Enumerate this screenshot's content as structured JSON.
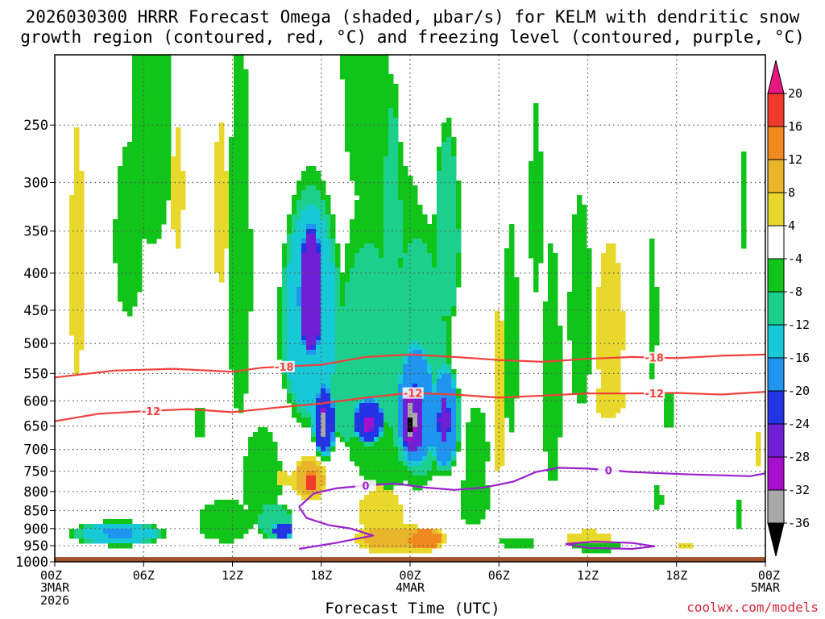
{
  "title_line1": "2026030300 HRRR Forecast Omega (shaded, μbar/s) for KELM with dendritic snow",
  "title_line2": "growth region (contoured, red, °C) and freezing level (contoured, purple, °C)",
  "credit": "coolwx.com/models",
  "chart_data": {
    "type": "heatmap",
    "title": "2026030300 HRRR Forecast Omega (shaded, μbar/s) for KELM",
    "xlabel": "Forecast Time (UTC)",
    "ylabel": "",
    "x_range_hours": [
      0,
      48
    ],
    "x_ticks": [
      {
        "hour": 0,
        "label": "00Z",
        "sub1": "3MAR",
        "sub2": "2026"
      },
      {
        "hour": 6,
        "label": "06Z",
        "sub1": "",
        "sub2": ""
      },
      {
        "hour": 12,
        "label": "12Z",
        "sub1": "",
        "sub2": ""
      },
      {
        "hour": 18,
        "label": "18Z",
        "sub1": "",
        "sub2": ""
      },
      {
        "hour": 24,
        "label": "00Z",
        "sub1": "4MAR",
        "sub2": ""
      },
      {
        "hour": 30,
        "label": "06Z",
        "sub1": "",
        "sub2": ""
      },
      {
        "hour": 36,
        "label": "12Z",
        "sub1": "",
        "sub2": ""
      },
      {
        "hour": 42,
        "label": "18Z",
        "sub1": "",
        "sub2": ""
      },
      {
        "hour": 48,
        "label": "00Z",
        "sub1": "5MAR",
        "sub2": ""
      }
    ],
    "y_axis_pressure_hpa": [
      250,
      300,
      350,
      400,
      450,
      500,
      550,
      600,
      650,
      700,
      750,
      800,
      850,
      900,
      950,
      1000
    ],
    "y_range_hpa": [
      200,
      1000
    ],
    "ground_level_hpa": 985,
    "colorbar_labels": [
      "20",
      "16",
      "12",
      "8",
      "4",
      "-4",
      "-8",
      "-12",
      "-16",
      "-20",
      "-24",
      "-28",
      "-32",
      "-36"
    ],
    "colorbar": [
      {
        "lo": 20,
        "hi": 24,
        "color": "#e8177f"
      },
      {
        "lo": 16,
        "hi": 20,
        "color": "#f03a2b"
      },
      {
        "lo": 12,
        "hi": 16,
        "color": "#f08a1e"
      },
      {
        "lo": 8,
        "hi": 12,
        "color": "#e9b52a"
      },
      {
        "lo": 4,
        "hi": 8,
        "color": "#e8d82c"
      },
      {
        "lo": -4,
        "hi": 4,
        "color": "#ffffff"
      },
      {
        "lo": -8,
        "hi": -4,
        "color": "#11c41a"
      },
      {
        "lo": -12,
        "hi": -8,
        "color": "#1ccf8c"
      },
      {
        "lo": -16,
        "hi": -12,
        "color": "#17c8d6"
      },
      {
        "lo": -20,
        "hi": -16,
        "color": "#1f95f0"
      },
      {
        "lo": -24,
        "hi": -20,
        "color": "#2334e4"
      },
      {
        "lo": -28,
        "hi": -24,
        "color": "#6f1fd6"
      },
      {
        "lo": -32,
        "hi": -28,
        "color": "#a60fcf"
      },
      {
        "lo": -36,
        "hi": -32,
        "color": "#a8a8a8"
      },
      {
        "lo": -40,
        "hi": -36,
        "color": "#000000"
      }
    ],
    "omega_features": [
      {
        "hour": 1.5,
        "p": 400,
        "dh": 0.6,
        "dp": 200,
        "v": 5
      },
      {
        "hour": 4.3,
        "p": 915,
        "dh": 3.6,
        "dp": 40,
        "v": -13
      },
      {
        "hour": 4.3,
        "p": 912,
        "dh": 1.5,
        "dp": 18,
        "v": -20
      },
      {
        "hour": 6.5,
        "p": 260,
        "dh": 1.8,
        "dp": 130,
        "v": -6
      },
      {
        "hour": 5,
        "p": 360,
        "dh": 1.2,
        "dp": 120,
        "v": -6
      },
      {
        "hour": 9.8,
        "p": 640,
        "dh": 0.5,
        "dp": 40,
        "v": -6
      },
      {
        "hour": 11.2,
        "p": 330,
        "dh": 0.6,
        "dp": 110,
        "v": 5
      },
      {
        "hour": 11.5,
        "p": 880,
        "dh": 2.2,
        "dp": 70,
        "v": -7
      },
      {
        "hour": 8.3,
        "p": 310,
        "dh": 0.5,
        "dp": 80,
        "v": 5
      },
      {
        "hour": 12.5,
        "p": 400,
        "dh": 1.0,
        "dp": 300,
        "v": -5
      },
      {
        "hour": 14,
        "p": 770,
        "dh": 1.6,
        "dp": 150,
        "v": -6
      },
      {
        "hour": 14.8,
        "p": 880,
        "dh": 1.4,
        "dp": 60,
        "v": -12
      },
      {
        "hour": 15.4,
        "p": 905,
        "dh": 0.8,
        "dp": 30,
        "v": -22
      },
      {
        "hour": 17.3,
        "p": 470,
        "dh": 2.4,
        "dp": 200,
        "v": -15
      },
      {
        "hour": 17.3,
        "p": 430,
        "dh": 1.0,
        "dp": 110,
        "v": -27
      },
      {
        "hour": 17.2,
        "p": 770,
        "dh": 1.3,
        "dp": 60,
        "v": 10
      },
      {
        "hour": 17.3,
        "p": 775,
        "dh": 0.5,
        "dp": 30,
        "v": 18
      },
      {
        "hour": 15.2,
        "p": 770,
        "dh": 1.0,
        "dp": 25,
        "v": 6
      },
      {
        "hour": 18.2,
        "p": 640,
        "dh": 0.9,
        "dp": 90,
        "v": -22
      },
      {
        "hour": 18.2,
        "p": 645,
        "dh": 0.3,
        "dp": 40,
        "v": -33
      },
      {
        "hour": 19.8,
        "p": 600,
        "dh": 1.3,
        "dp": 100,
        "v": -12
      },
      {
        "hour": 21,
        "p": 200,
        "dh": 2.0,
        "dp": 150,
        "v": -6
      },
      {
        "hour": 21.2,
        "p": 520,
        "dh": 2.6,
        "dp": 200,
        "v": -11
      },
      {
        "hour": 21.2,
        "p": 640,
        "dh": 1.3,
        "dp": 55,
        "v": -23
      },
      {
        "hour": 21.2,
        "p": 645,
        "dh": 0.5,
        "dp": 20,
        "v": -31
      },
      {
        "hour": 22.5,
        "p": 530,
        "dh": 4.5,
        "dp": 330,
        "v": -6
      },
      {
        "hour": 22,
        "p": 860,
        "dh": 1.8,
        "dp": 90,
        "v": 6
      },
      {
        "hour": 23,
        "p": 930,
        "dh": 3.4,
        "dp": 50,
        "v": 8
      },
      {
        "hour": 25,
        "p": 930,
        "dh": 1.5,
        "dp": 40,
        "v": 13
      },
      {
        "hour": 24.5,
        "p": 560,
        "dh": 2.6,
        "dp": 260,
        "v": -11
      },
      {
        "hour": 24.4,
        "p": 620,
        "dh": 1.6,
        "dp": 150,
        "v": -20
      },
      {
        "hour": 24.2,
        "p": 640,
        "dh": 1.0,
        "dp": 90,
        "v": -27
      },
      {
        "hour": 24.1,
        "p": 640,
        "dh": 0.35,
        "dp": 60,
        "v": -34
      },
      {
        "hour": 24.1,
        "p": 645,
        "dh": 0.18,
        "dp": 35,
        "v": -38
      },
      {
        "hour": 22.8,
        "p": 350,
        "dh": 0.8,
        "dp": 160,
        "v": -9
      },
      {
        "hour": 26.5,
        "p": 360,
        "dh": 1.0,
        "dp": 130,
        "v": -11
      },
      {
        "hour": 26.3,
        "p": 640,
        "dh": 1.2,
        "dp": 130,
        "v": -18
      },
      {
        "hour": 26.3,
        "p": 640,
        "dh": 0.5,
        "dp": 60,
        "v": -25
      },
      {
        "hour": 28.3,
        "p": 820,
        "dh": 1.3,
        "dp": 90,
        "v": -6
      },
      {
        "hour": 28.5,
        "p": 700,
        "dh": 1.0,
        "dp": 120,
        "v": -5
      },
      {
        "hour": 30,
        "p": 600,
        "dh": 0.5,
        "dp": 200,
        "v": 6
      },
      {
        "hour": 30.8,
        "p": 500,
        "dh": 0.6,
        "dp": 200,
        "v": -6
      },
      {
        "hour": 31.3,
        "p": 940,
        "dh": 1.5,
        "dp": 20,
        "v": -6
      },
      {
        "hour": 32.5,
        "p": 330,
        "dh": 0.5,
        "dp": 120,
        "v": -6
      },
      {
        "hour": 33.6,
        "p": 570,
        "dh": 0.8,
        "dp": 280,
        "v": -5
      },
      {
        "hour": 35.5,
        "p": 460,
        "dh": 1.0,
        "dp": 200,
        "v": -5
      },
      {
        "hour": 36,
        "p": 930,
        "dh": 2.0,
        "dp": 30,
        "v": 6
      },
      {
        "hour": 36.5,
        "p": 950,
        "dh": 2.0,
        "dp": 25,
        "v": -6
      },
      {
        "hour": 37.5,
        "p": 480,
        "dh": 1.2,
        "dp": 160,
        "v": 5
      },
      {
        "hour": 37.5,
        "p": 600,
        "dh": 1.3,
        "dp": 40,
        "v": 6
      },
      {
        "hour": 40.4,
        "p": 460,
        "dh": 0.35,
        "dp": 130,
        "v": -6
      },
      {
        "hour": 40.7,
        "p": 820,
        "dh": 0.4,
        "dp": 40,
        "v": -6
      },
      {
        "hour": 41.5,
        "p": 620,
        "dh": 0.4,
        "dp": 50,
        "v": -6
      },
      {
        "hour": 42.5,
        "p": 950,
        "dh": 0.6,
        "dp": 8,
        "v": 5
      },
      {
        "hour": 46.5,
        "p": 320,
        "dh": 0.3,
        "dp": 60,
        "v": -6
      },
      {
        "hour": 46.2,
        "p": 865,
        "dh": 0.4,
        "dp": 50,
        "v": -6
      },
      {
        "hour": 47.5,
        "p": 700,
        "dh": 0.4,
        "dp": 50,
        "v": 5
      }
    ],
    "contours": [
      {
        "name": "-18 °C isotherm",
        "label": "-18",
        "color": "#f0403c",
        "label_hours": [
          15.5,
          40.5
        ],
        "points": [
          [
            0,
            557
          ],
          [
            4,
            545
          ],
          [
            8,
            542
          ],
          [
            12,
            547
          ],
          [
            14,
            540
          ],
          [
            18,
            535
          ],
          [
            21,
            522
          ],
          [
            24,
            518
          ],
          [
            27,
            522
          ],
          [
            30,
            527
          ],
          [
            33,
            530
          ],
          [
            36,
            525
          ],
          [
            39,
            522
          ],
          [
            42,
            524
          ],
          [
            45,
            520
          ],
          [
            48,
            518
          ]
        ]
      },
      {
        "name": "-12 °C isotherm",
        "label": "-12",
        "color": "#f0403c",
        "label_hours": [
          6.5,
          24.2,
          40.5
        ],
        "points": [
          [
            0,
            640
          ],
          [
            3,
            625
          ],
          [
            6,
            620
          ],
          [
            9,
            616
          ],
          [
            12,
            622
          ],
          [
            15,
            613
          ],
          [
            18,
            605
          ],
          [
            21,
            594
          ],
          [
            24,
            585
          ],
          [
            27,
            588
          ],
          [
            30,
            594
          ],
          [
            33,
            590
          ],
          [
            36,
            586
          ],
          [
            39,
            586
          ],
          [
            42,
            585
          ],
          [
            45,
            588
          ],
          [
            48,
            583
          ]
        ]
      },
      {
        "name": "0 °C freezing level",
        "label": "0",
        "color": "#9a1fcc",
        "label_hours": [
          21,
          37.4
        ],
        "points": [
          [
            16.5,
            840
          ],
          [
            17.5,
            805
          ],
          [
            19,
            792
          ],
          [
            21,
            785
          ],
          [
            23,
            780
          ],
          [
            25,
            790
          ],
          [
            27,
            796
          ],
          [
            29,
            790
          ],
          [
            31,
            775
          ],
          [
            32.5,
            752
          ],
          [
            34,
            742
          ],
          [
            36,
            744
          ],
          [
            37.5,
            748
          ],
          [
            39,
            752
          ],
          [
            41,
            755
          ],
          [
            43,
            758
          ],
          [
            45,
            760
          ],
          [
            47,
            762
          ],
          [
            48,
            755
          ]
        ]
      },
      {
        "name": "0 °C freezing level (low lobe)",
        "label": "",
        "color": "#9a1fcc",
        "label_hours": [],
        "points": [
          [
            16.5,
            840
          ],
          [
            17,
            870
          ],
          [
            18.5,
            890
          ],
          [
            20,
            900
          ],
          [
            21.5,
            920
          ],
          [
            19,
            942
          ],
          [
            16.5,
            960
          ]
        ]
      },
      {
        "name": "0 °C freezing level (low closed)",
        "label": "",
        "color": "#9a1fcc",
        "label_hours": [],
        "points": [
          [
            34.5,
            945
          ],
          [
            36.5,
            938
          ],
          [
            39,
            942
          ],
          [
            40.5,
            952
          ],
          [
            39,
            960
          ],
          [
            36,
            957
          ],
          [
            34.5,
            945
          ]
        ]
      }
    ]
  }
}
